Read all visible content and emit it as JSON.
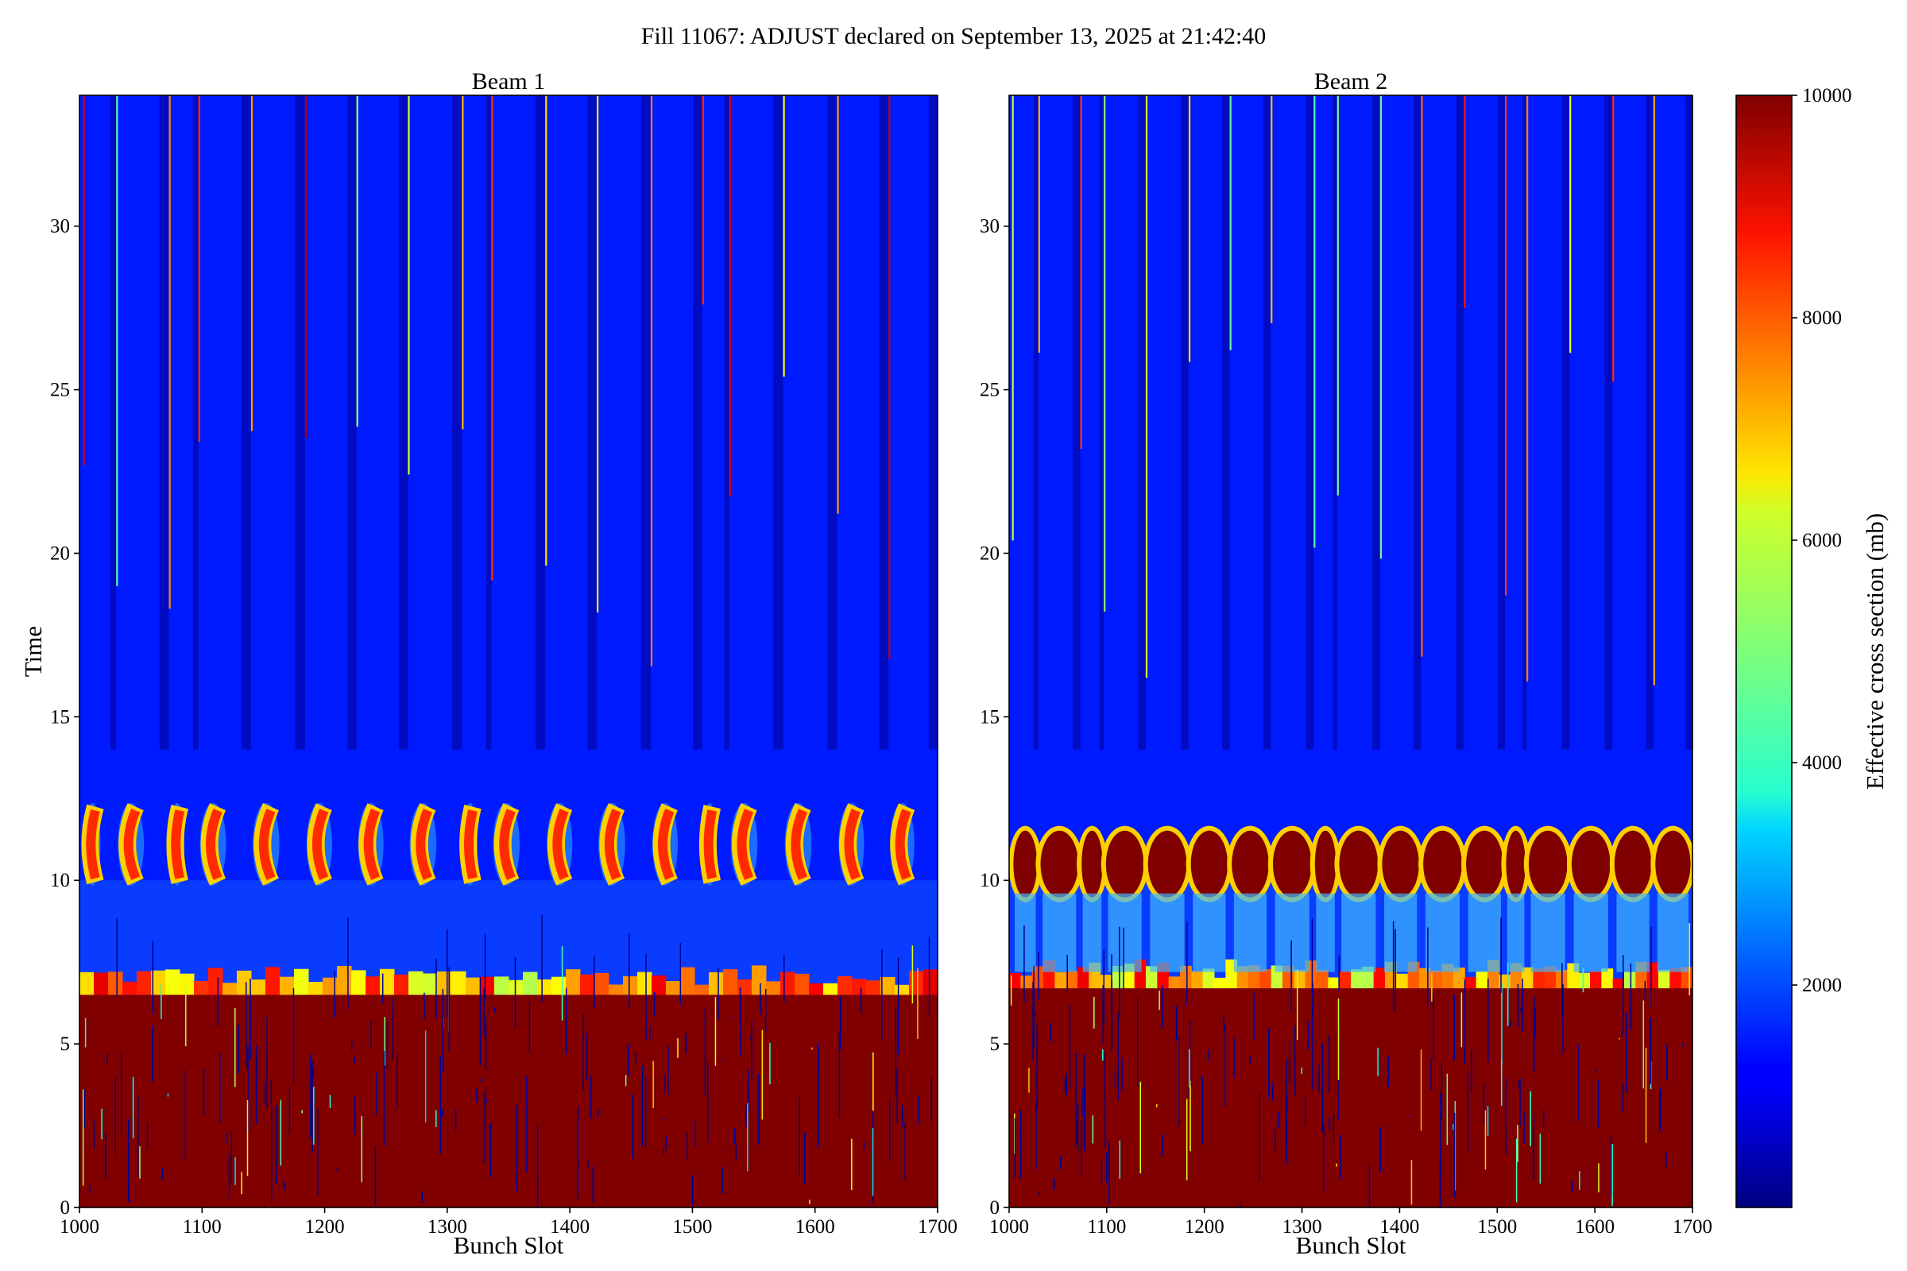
{
  "figure_title": "Fill 11067: ADJUST declared on September 13, 2025 at 21:42:40",
  "colorbar": {
    "label": "Effective cross section (mb)",
    "ticks": [
      "2000",
      "4000",
      "6000",
      "8000",
      "10000"
    ],
    "range": [
      0,
      10000
    ],
    "colormap": "jet"
  },
  "chart_data": [
    {
      "type": "heatmap",
      "title": "Beam 1",
      "xlabel": "Bunch Slot",
      "ylabel": "Time",
      "xlim": [
        1000,
        1700
      ],
      "ylim": [
        0,
        34
      ],
      "xticks": [
        "1000",
        "1100",
        "1200",
        "1300",
        "1400",
        "1500",
        "1600",
        "1700"
      ],
      "yticks": [
        "0",
        "5",
        "10",
        "15",
        "20",
        "25",
        "30"
      ],
      "train_starts": [
        1003,
        1030,
        1073,
        1097,
        1140,
        1184,
        1226,
        1268,
        1312,
        1336,
        1380,
        1422,
        1466,
        1508,
        1530,
        1574,
        1618,
        1660
      ],
      "saturated_until_time": 6.5,
      "arcs_at_time": [
        10,
        12.3
      ],
      "background_value": 1500
    },
    {
      "type": "heatmap",
      "title": "Beam 2",
      "xlabel": "Bunch Slot",
      "xlim": [
        1000,
        1700
      ],
      "ylim": [
        0,
        34
      ],
      "xticks": [
        "1000",
        "1100",
        "1200",
        "1300",
        "1400",
        "1500",
        "1600",
        "1700"
      ],
      "yticks": [
        "0",
        "5",
        "10",
        "15",
        "20",
        "25",
        "30"
      ],
      "train_starts": [
        1003,
        1030,
        1073,
        1097,
        1140,
        1184,
        1226,
        1268,
        1312,
        1336,
        1380,
        1422,
        1466,
        1508,
        1530,
        1574,
        1618,
        1660
      ],
      "saturated_until_time": 6.7,
      "blobs_at_time": [
        9.6,
        11.3
      ],
      "background_value": 1500
    }
  ]
}
